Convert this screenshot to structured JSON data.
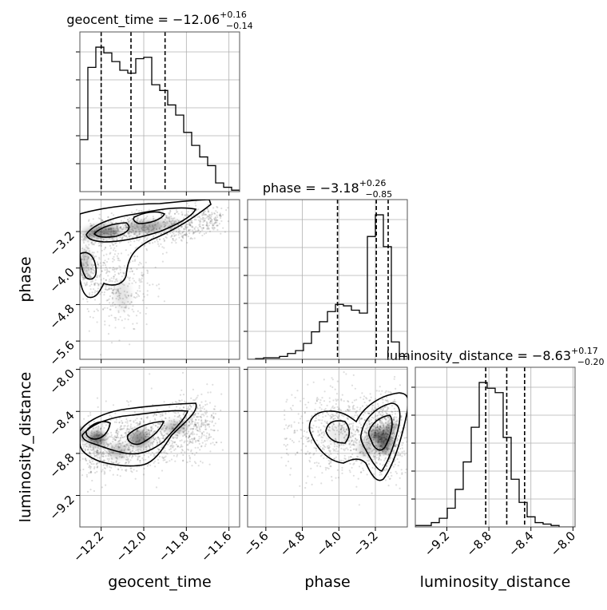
{
  "chart_data": {
    "type": "corner",
    "parameters": [
      "geocent_time",
      "phase",
      "luminosity_distance"
    ],
    "titles": {
      "geocent_time": {
        "label": "geocent_time",
        "median": "−12.06",
        "plus": "+0.16",
        "minus": "−0.14"
      },
      "phase": {
        "label": "phase",
        "median": "−3.18",
        "plus": "+0.26",
        "minus": "−0.85"
      },
      "luminosity_distance": {
        "label": "luminosity_distance",
        "median": "−8.63",
        "plus": "+0.17",
        "minus": "−0.20"
      }
    },
    "axes": {
      "geocent_time": {
        "range": [
          -12.3,
          -11.55
        ],
        "ticks": [
          -12.2,
          -12.0,
          -11.8,
          -11.6
        ],
        "tick_labels": [
          "−12.2",
          "−12.0",
          "−11.8",
          "−11.6"
        ]
      },
      "phase": {
        "range": [
          -6.0,
          -2.5
        ],
        "ticks": [
          -5.6,
          -4.8,
          -4.0,
          -3.2
        ],
        "tick_labels": [
          "−5.6",
          "−4.8",
          "−4.0",
          "−3.2"
        ]
      },
      "luminosity_distance": {
        "range": [
          -9.5,
          -7.98
        ],
        "ticks": [
          -9.2,
          -8.8,
          -8.4,
          -8.0
        ],
        "tick_labels": [
          "−9.2",
          "−8.8",
          "−8.4",
          "−8.0"
        ]
      }
    },
    "quantiles": {
      "geocent_time": [
        -12.2,
        -12.06,
        -11.9
      ],
      "phase": [
        -4.03,
        -3.18,
        -2.92
      ],
      "luminosity_distance": [
        -8.83,
        -8.63,
        -8.46
      ]
    },
    "histograms": {
      "geocent_time": {
        "edges_start": -12.3,
        "bin_width": 0.0375,
        "counts": [
          0.36,
          0.86,
          1.0,
          0.96,
          0.9,
          0.84,
          0.82,
          0.92,
          0.93,
          0.74,
          0.7,
          0.6,
          0.53,
          0.41,
          0.32,
          0.24,
          0.18,
          0.06,
          0.03,
          0.01
        ]
      },
      "phase": {
        "edges_start": -6.0,
        "bin_width": 0.175,
        "counts": [
          0.0,
          0.005,
          0.01,
          0.01,
          0.02,
          0.04,
          0.06,
          0.11,
          0.19,
          0.26,
          0.33,
          0.38,
          0.37,
          0.34,
          0.32,
          0.85,
          1.0,
          0.78,
          0.12,
          0.02
        ]
      },
      "luminosity_distance": {
        "edges_start": -9.5,
        "bin_width": 0.076,
        "counts": [
          0.01,
          0.01,
          0.03,
          0.06,
          0.13,
          0.26,
          0.45,
          0.69,
          1.0,
          0.96,
          0.93,
          0.62,
          0.33,
          0.17,
          0.07,
          0.03,
          0.02,
          0.01,
          0.0,
          0.0
        ]
      }
    },
    "density_2d": {
      "phase_vs_geocent_time": {
        "centers": [
          [
            -12.18,
            -3.2
          ],
          [
            -12.0,
            -3.08
          ],
          [
            -11.93,
            -3.0
          ],
          [
            -12.27,
            -3.9
          ],
          [
            -12.12,
            -4.6
          ]
        ]
      },
      "luminosity_distance_vs_geocent_time": {
        "centers": [
          [
            -12.22,
            -8.66
          ],
          [
            -12.02,
            -8.66
          ],
          [
            -11.85,
            -8.55
          ],
          [
            -12.1,
            -8.78
          ]
        ]
      },
      "luminosity_distance_vs_phase": {
        "centers": [
          [
            -3.0,
            -8.68
          ],
          [
            -3.2,
            -8.6
          ],
          [
            -4.0,
            -8.6
          ],
          [
            -3.35,
            -8.8
          ]
        ]
      }
    },
    "xlabels": [
      "geocent_time",
      "phase",
      "luminosity_distance"
    ],
    "ylabels": [
      "",
      "phase",
      "luminosity_distance"
    ],
    "grid": true
  }
}
